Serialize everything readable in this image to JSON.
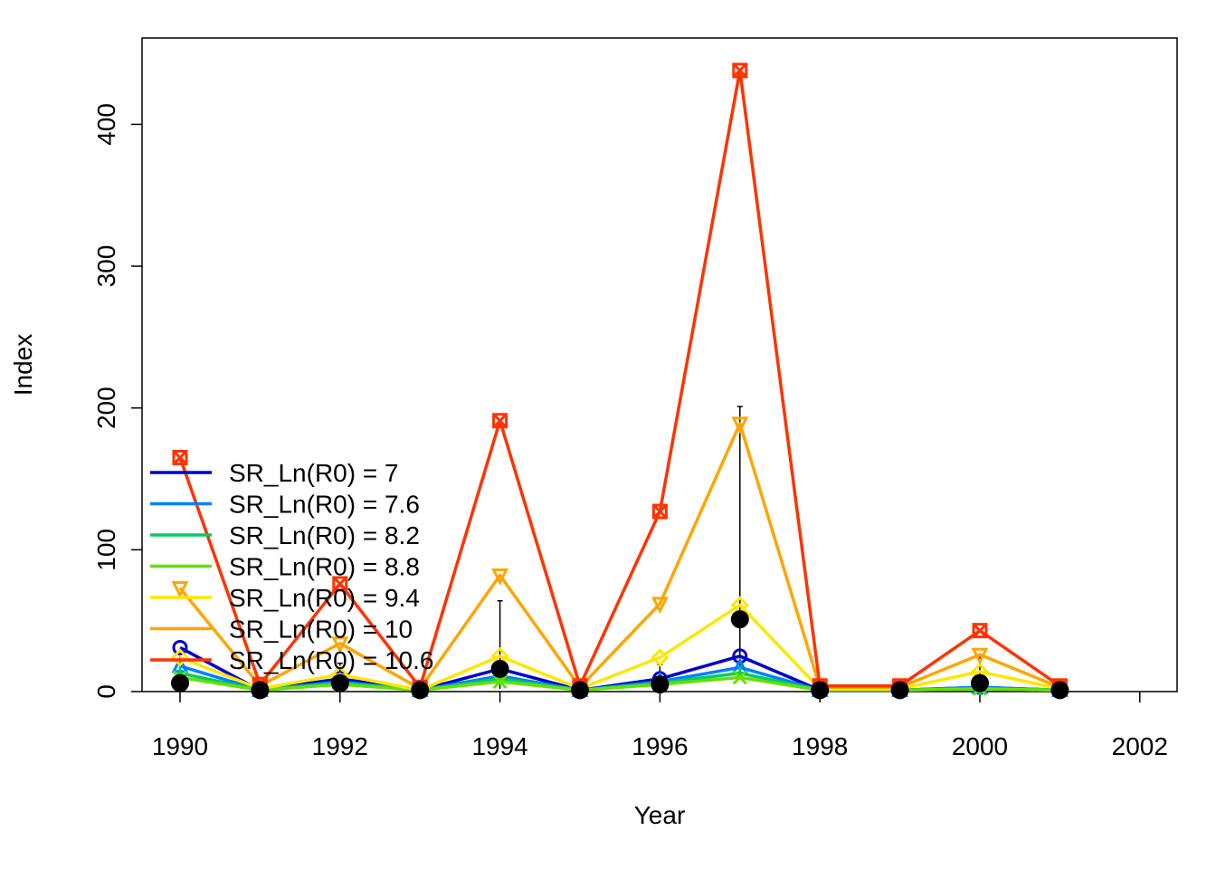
{
  "chart_data": {
    "type": "line",
    "xlabel": "Year",
    "ylabel": "Index",
    "xlim": [
      1989.5,
      2002.5
    ],
    "ylim": [
      0,
      460
    ],
    "xticks": [
      1990,
      1992,
      1994,
      1996,
      1998,
      2000,
      2002
    ],
    "yticks": [
      0,
      100,
      200,
      300,
      400
    ],
    "x": [
      1990,
      1991,
      1992,
      1993,
      1994,
      1995,
      1996,
      1997,
      1998,
      1999,
      2000,
      2001
    ],
    "legend_position": "bottom-left",
    "series": [
      {
        "name": "SR_Ln(R0) =  7",
        "color": "#0000CC",
        "marker": "circle",
        "values": [
          31,
          1,
          9,
          1,
          16,
          1,
          9,
          25,
          1,
          1,
          3,
          1
        ]
      },
      {
        "name": "SR_Ln(R0) =  7.6",
        "color": "#0080FF",
        "marker": "triangle-up",
        "values": [
          18,
          1,
          7,
          1,
          11,
          1,
          7,
          17,
          1,
          1,
          3,
          1
        ]
      },
      {
        "name": "SR_Ln(R0) =  8.2",
        "color": "#00CC66",
        "marker": "plus",
        "values": [
          13,
          1,
          6,
          1,
          9,
          1,
          6,
          13,
          1,
          1,
          2,
          1
        ]
      },
      {
        "name": "SR_Ln(R0) =  8.8",
        "color": "#66E000",
        "marker": "cross",
        "values": [
          10,
          1,
          5,
          1,
          7,
          1,
          5,
          10,
          1,
          1,
          2,
          1
        ]
      },
      {
        "name": "SR_Ln(R0) =  9.4",
        "color": "#FFE600",
        "marker": "diamond",
        "values": [
          24,
          2,
          12,
          1,
          25,
          2,
          24,
          61,
          2,
          2,
          14,
          2
        ]
      },
      {
        "name": "SR_Ln(R0) =  10",
        "color": "#FFA500",
        "marker": "triangle-down",
        "values": [
          73,
          4,
          34,
          2,
          82,
          3,
          62,
          189,
          3,
          3,
          26,
          3
        ]
      },
      {
        "name": "SR_Ln(R0) =  10.6",
        "color": "#FF3300",
        "marker": "square-x",
        "values": [
          165,
          5,
          76,
          3,
          191,
          4,
          127,
          438,
          4,
          4,
          43,
          4
        ]
      }
    ],
    "observed": {
      "color": "#000000",
      "x": [
        1990,
        1991,
        1992,
        1993,
        1994,
        1995,
        1996,
        1997,
        1998,
        1999,
        2000,
        2001
      ],
      "values": [
        6,
        1,
        6,
        1,
        16,
        1,
        5,
        51,
        1,
        1,
        6,
        1
      ],
      "upper": [
        22,
        3,
        20,
        3,
        64,
        3,
        19,
        201,
        3,
        3,
        24,
        3
      ],
      "lower": [
        1,
        0,
        1,
        0,
        2,
        0,
        1,
        10,
        0,
        0,
        1,
        0
      ]
    }
  }
}
